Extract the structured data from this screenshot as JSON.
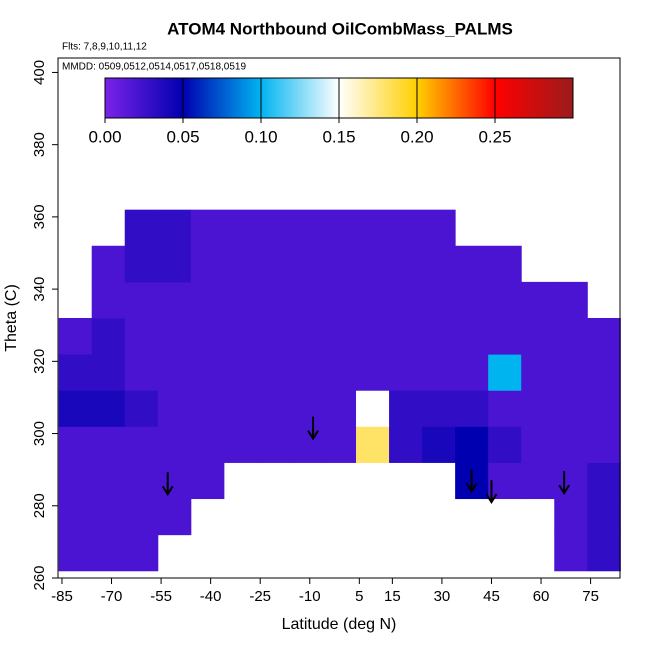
{
  "chart_data": {
    "type": "heatmap",
    "title": "ATOM4 Northbound OilCombMass_PALMS",
    "subtitle": "Flts: 7,8,9,10,11,12",
    "annotation": "MMDD: 0509,0512,0514,0517,0518,0519",
    "xlabel": "Latitude (deg N)",
    "ylabel": "Theta (C)",
    "xlim": [
      -86.2,
      83.9
    ],
    "ylim": [
      260,
      404
    ],
    "xticks": [
      -85,
      -70,
      -55,
      -40,
      -25,
      -10,
      5,
      15,
      30,
      45,
      60,
      75
    ],
    "yticks": [
      260,
      280,
      300,
      320,
      340,
      360,
      380,
      400
    ],
    "x_edges": [
      -86,
      -76,
      -66,
      -56,
      -46,
      -36,
      -26,
      -16,
      -6,
      4,
      14,
      24,
      34,
      44,
      54,
      64,
      74,
      84
    ],
    "y_edges": [
      262,
      272,
      282,
      292,
      302,
      312,
      322,
      332,
      342,
      352,
      362
    ],
    "values": [
      [
        0.02,
        0.02,
        0.02,
        null,
        null,
        null,
        null,
        null,
        null,
        null,
        null,
        null,
        null,
        null,
        null,
        0.02,
        0.03
      ],
      [
        0.02,
        0.02,
        0.02,
        0.02,
        null,
        null,
        null,
        null,
        null,
        null,
        null,
        null,
        null,
        null,
        null,
        0.02,
        0.03
      ],
      [
        0.02,
        0.02,
        0.02,
        0.02,
        0.02,
        null,
        null,
        null,
        null,
        null,
        null,
        null,
        0.05,
        0.02,
        0.02,
        0.02,
        0.03
      ],
      [
        0.02,
        0.02,
        0.02,
        0.02,
        0.02,
        0.02,
        0.02,
        0.02,
        0.02,
        0.18,
        0.03,
        0.04,
        0.05,
        0.03,
        0.02,
        0.02,
        0.02
      ],
      [
        0.04,
        0.04,
        0.03,
        0.02,
        0.02,
        0.02,
        0.02,
        0.02,
        0.02,
        0.15,
        0.03,
        0.03,
        0.03,
        0.02,
        0.02,
        0.02,
        0.02
      ],
      [
        0.03,
        0.03,
        0.02,
        0.02,
        0.02,
        0.02,
        0.02,
        0.02,
        0.02,
        0.02,
        0.02,
        0.02,
        0.02,
        0.1,
        0.02,
        0.02,
        0.02
      ],
      [
        0.02,
        0.03,
        0.02,
        0.02,
        0.02,
        0.02,
        0.02,
        0.02,
        0.02,
        0.02,
        0.02,
        0.02,
        0.02,
        0.02,
        0.02,
        0.02,
        0.02
      ],
      [
        null,
        0.02,
        0.02,
        0.02,
        0.02,
        0.02,
        0.02,
        0.02,
        0.02,
        0.02,
        0.02,
        0.02,
        0.02,
        0.02,
        0.02,
        0.02,
        null
      ],
      [
        null,
        0.02,
        0.03,
        0.03,
        0.02,
        0.02,
        0.02,
        0.02,
        0.02,
        0.02,
        0.02,
        0.02,
        0.02,
        0.02,
        null,
        null,
        null
      ],
      [
        null,
        null,
        0.03,
        0.03,
        0.02,
        0.02,
        0.02,
        0.02,
        0.02,
        0.02,
        0.02,
        0.02,
        null,
        null,
        null,
        null,
        null
      ]
    ],
    "clim": [
      0,
      0.3
    ],
    "cmap_colors": [
      "#7b22e8",
      "#0000b0",
      "#00b4f0",
      "#ffffff",
      "#ffd000",
      "#ff0000",
      "#9b1b1b"
    ],
    "cticks": [
      {
        "value": 0,
        "label": "0.00"
      },
      {
        "value": 0.05,
        "label": "0.05"
      },
      {
        "value": 0.1,
        "label": "0.10"
      },
      {
        "value": 0.15,
        "label": "0.15"
      },
      {
        "value": 0.2,
        "label": "0.20"
      },
      {
        "value": 0.25,
        "label": "0.25"
      }
    ],
    "arrows": {
      "x": [
        -53,
        -9,
        39,
        45,
        67
      ],
      "y": [
        283.2,
        298.6,
        284,
        281,
        283.5
      ]
    }
  }
}
